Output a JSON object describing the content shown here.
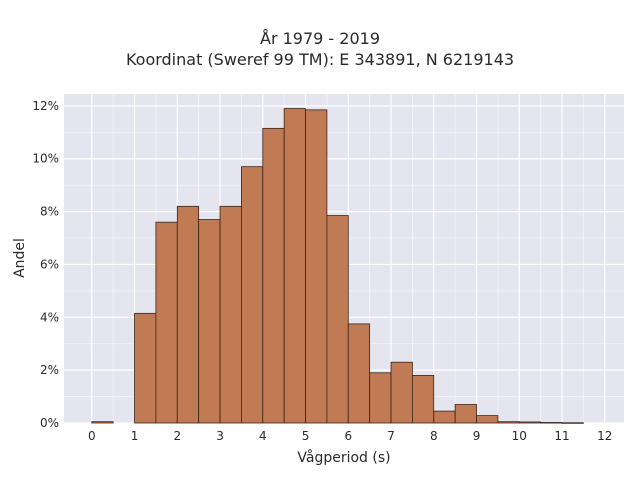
{
  "chart_data": {
    "type": "bar",
    "title_lines": [
      "År 1979 - 2019",
      "Koordinat (Sweref 99 TM): E 343891, N 6219143"
    ],
    "xlabel": "Vågperiod (s)",
    "ylabel": "Andel",
    "x_ticks": [
      0,
      1,
      2,
      3,
      4,
      5,
      6,
      7,
      8,
      9,
      10,
      11,
      12
    ],
    "y_ticks": [
      0,
      2,
      4,
      6,
      8,
      10,
      12
    ],
    "y_tick_labels": [
      "0%",
      "2%",
      "4%",
      "6%",
      "8%",
      "10%",
      "12%"
    ],
    "xlim": [
      -0.65,
      12.45
    ],
    "ylim": [
      0,
      12.45
    ],
    "bin_width": 0.5,
    "bins": [
      {
        "x0": 0.0,
        "value": 0.05
      },
      {
        "x0": 0.5,
        "value": 0.0
      },
      {
        "x0": 1.0,
        "value": 4.15
      },
      {
        "x0": 1.5,
        "value": 7.6
      },
      {
        "x0": 2.0,
        "value": 8.2
      },
      {
        "x0": 2.5,
        "value": 7.7
      },
      {
        "x0": 3.0,
        "value": 8.2
      },
      {
        "x0": 3.5,
        "value": 9.7
      },
      {
        "x0": 4.0,
        "value": 11.15
      },
      {
        "x0": 4.5,
        "value": 11.9
      },
      {
        "x0": 5.0,
        "value": 11.85
      },
      {
        "x0": 5.5,
        "value": 7.85
      },
      {
        "x0": 6.0,
        "value": 3.75
      },
      {
        "x0": 6.5,
        "value": 1.9
      },
      {
        "x0": 7.0,
        "value": 2.3
      },
      {
        "x0": 7.5,
        "value": 1.8
      },
      {
        "x0": 8.0,
        "value": 0.45
      },
      {
        "x0": 8.5,
        "value": 0.7
      },
      {
        "x0": 9.0,
        "value": 0.28
      },
      {
        "x0": 9.5,
        "value": 0.05
      },
      {
        "x0": 10.0,
        "value": 0.04
      },
      {
        "x0": 10.5,
        "value": 0.02
      },
      {
        "x0": 11.0,
        "value": 0.01
      }
    ],
    "bar_color": "#c07a54",
    "bar_edge_color": "#3a2418",
    "plot_background": "#e5e5ef",
    "grid": true
  }
}
